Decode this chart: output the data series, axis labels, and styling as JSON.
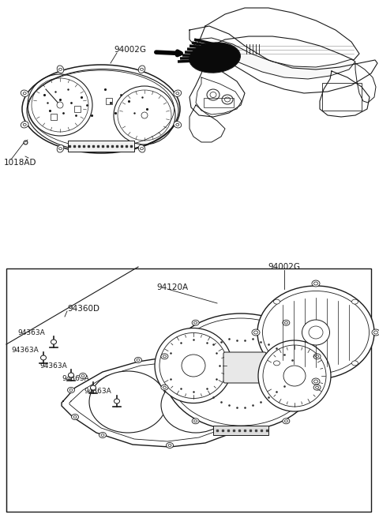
{
  "bg_color": "#ffffff",
  "line_color": "#1a1a1a",
  "labels": {
    "top_part": "94002G",
    "top_screw": "1018AD",
    "bottom_assembly": "94002G",
    "cluster_face": "94120A",
    "lens_cover": "94360D",
    "bulbs": [
      "94363A",
      "94363A",
      "94363A",
      "94363A",
      "94363A"
    ]
  },
  "fig_w": 4.8,
  "fig_h": 6.56,
  "dpi": 100
}
